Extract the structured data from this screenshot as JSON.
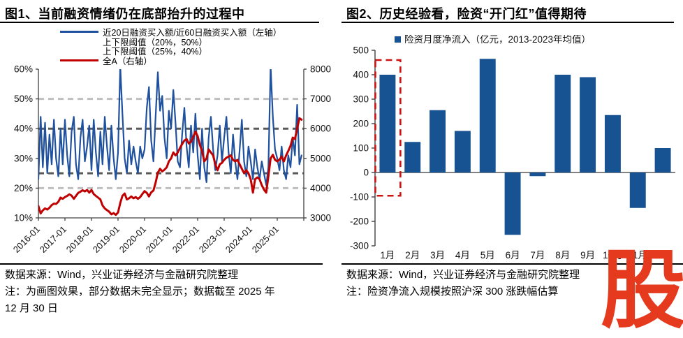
{
  "left_panel": {
    "title": "图1、当前融资情绪仍在底部抬升的过程中",
    "notes": [
      "数据来源：Wind，兴业证券经济与金融研究院整理",
      "注：为画图效果，部分数据未完全显示；数据截至 2025 年",
      "12 月 30 日"
    ]
  },
  "right_panel": {
    "title": "图2、历史经验看，险资“开门红”值得期待",
    "notes": [
      "数据来源：Wind，兴业证券经济与金融研究院整理",
      "注：险资净流入规模按照沪深 300 涨跌幅估算"
    ]
  },
  "watermark": "股",
  "colors": {
    "line_blue": "#1F519E",
    "bar_blue": "#175292",
    "red": "#C00000",
    "light_dash": "#BFBFBF",
    "dark_dash": "#595959",
    "axis": "#404040",
    "highlight_red": "#CE1212",
    "watermark_red": "#E53A1E"
  },
  "chart_data": [
    {
      "type": "line",
      "legend": [
        {
          "label": "近20日融资买入额/近60日融资买入额（左轴）",
          "style": "solid",
          "color": "#1F519E"
        },
        {
          "label": "上下限阈值（20%，50%）",
          "style": "dashed",
          "color": "#BFBFBF"
        },
        {
          "label": "上下限阈值（25%，40%）",
          "style": "dashed",
          "color": "#595959"
        },
        {
          "label": "全A（右轴）",
          "style": "solid",
          "color": "#C00000"
        }
      ],
      "x_tick_labels": [
        "2016-01",
        "2017-01",
        "2018-01",
        "2019-01",
        "2020-01",
        "2021-01",
        "2022-01",
        "2023-01",
        "2024-01",
        "2025-01"
      ],
      "left_axis": {
        "min": 10,
        "max": 60,
        "tick_labels": [
          "10%",
          "20%",
          "30%",
          "40%",
          "50%",
          "60%"
        ]
      },
      "right_axis": {
        "min": 3000,
        "max": 8000,
        "tick_labels": [
          "3000",
          "4000",
          "5000",
          "6000",
          "7000",
          "8000"
        ]
      },
      "thresholds": {
        "light": [
          20,
          50
        ],
        "dark": [
          25,
          40
        ]
      },
      "x_start_year": 2016,
      "x_end_year": 2026,
      "points_per_year": 12,
      "series": [
        {
          "name": "近20日融资买入额/近60日融资买入额",
          "axis": "left",
          "color": "#1F519E",
          "width": 2.2,
          "values": [
            23,
            44,
            27,
            42,
            25,
            38,
            28,
            43,
            30,
            24,
            40,
            28,
            43,
            31,
            24,
            39,
            44,
            28,
            23,
            37,
            43,
            29,
            34,
            41,
            26,
            43,
            32,
            24,
            39,
            28,
            44,
            34,
            26,
            41,
            30,
            23,
            32,
            61,
            45,
            30,
            25,
            36,
            28,
            34,
            29,
            25,
            34,
            30,
            33,
            47,
            54,
            36,
            29,
            44,
            59,
            46,
            51,
            37,
            30,
            46,
            40,
            53,
            42,
            29,
            27,
            38,
            47,
            34,
            27,
            41,
            32,
            45,
            31,
            23,
            40,
            27,
            22,
            37,
            44,
            33,
            26,
            31,
            41,
            29,
            37,
            44,
            32,
            25,
            38,
            29,
            23,
            33,
            43,
            29,
            24,
            34,
            29,
            23,
            33,
            27,
            23,
            29,
            25,
            21,
            27,
            61,
            44,
            33,
            30,
            26,
            34,
            26,
            23,
            31,
            27,
            37,
            31,
            48,
            28,
            31
          ]
        },
        {
          "name": "全A",
          "axis": "right",
          "color": "#C00000",
          "width": 3,
          "values": [
            3400,
            3150,
            3250,
            3320,
            3280,
            3340,
            3430,
            3480,
            3470,
            3540,
            3680,
            3640,
            3700,
            3740,
            3790,
            3750,
            3640,
            3740,
            3840,
            3880,
            3930,
            3890,
            3940,
            3850,
            3940,
            3800,
            3740,
            3680,
            3620,
            3420,
            3320,
            3260,
            3210,
            3120,
            3160,
            3100,
            3180,
            3500,
            3740,
            3820,
            3620,
            3660,
            3720,
            3660,
            3700,
            3640,
            3700,
            3800,
            3900,
            3840,
            3720,
            3860,
            3920,
            4180,
            4520,
            4650,
            4560,
            4620,
            4700,
            4900,
            5000,
            5200,
            5100,
            5200,
            5350,
            5480,
            5600,
            5650,
            5500,
            5560,
            5720,
            5900,
            5750,
            5450,
            5250,
            4900,
            5000,
            5300,
            5200,
            5100,
            4800,
            4600,
            4800,
            4850,
            4950,
            5020,
            5060,
            5100,
            4950,
            4900,
            4950,
            4800,
            4650,
            4500,
            4600,
            4500,
            4300,
            3850,
            4300,
            4360,
            4300,
            4100,
            3950,
            3850,
            4400,
            5000,
            5120,
            4950,
            4900,
            4960,
            5060,
            4900,
            5100,
            5250,
            5420,
            5700,
            5650,
            6000,
            6350,
            6300
          ]
        }
      ]
    },
    {
      "type": "bar",
      "legend_label": "险资月度净流入（亿元，2013-2023年均值）",
      "categories": [
        "1月",
        "2月",
        "3月",
        "4月",
        "5月",
        "6月",
        "7月",
        "8月",
        "9月",
        "10月",
        "11月",
        "12月"
      ],
      "values": [
        400,
        125,
        255,
        170,
        465,
        -255,
        -15,
        400,
        390,
        235,
        -145,
        100
      ],
      "ylim": [
        -300,
        500
      ],
      "y_ticks": [
        500,
        400,
        300,
        200,
        100,
        0,
        -100,
        -200,
        -300
      ],
      "bar_color": "#175292",
      "highlight": {
        "index": 0,
        "box_color": "#CE1212",
        "top": 460,
        "bottom": -95
      }
    }
  ]
}
